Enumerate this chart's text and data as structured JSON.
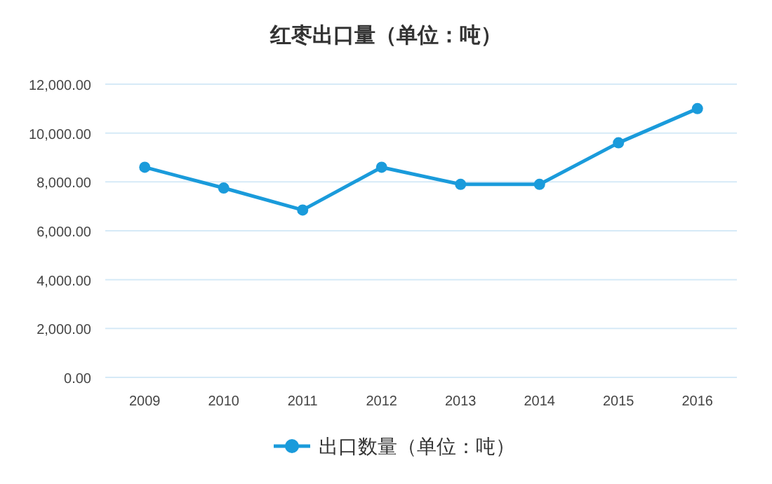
{
  "chart_data": {
    "type": "line",
    "title": "红枣出口量（单位：吨）",
    "categories": [
      "2009",
      "2010",
      "2011",
      "2012",
      "2013",
      "2014",
      "2015",
      "2016"
    ],
    "series": [
      {
        "name": "出口数量（单位：吨）",
        "color": "#1a9bdb",
        "values": [
          8600,
          7750,
          6850,
          8600,
          7900,
          7900,
          9600,
          11000
        ]
      }
    ],
    "ylim": [
      0,
      12000
    ],
    "yticks": [
      {
        "value": 0,
        "label": "0.00"
      },
      {
        "value": 2000,
        "label": "2,000.00"
      },
      {
        "value": 4000,
        "label": "4,000.00"
      },
      {
        "value": 6000,
        "label": "6,000.00"
      },
      {
        "value": 8000,
        "label": "8,000.00"
      },
      {
        "value": 10000,
        "label": "10,000.00"
      },
      {
        "value": 12000,
        "label": "12,000.00"
      }
    ],
    "grid": "y",
    "legend": "bottom",
    "marker": "circle",
    "line_style": "solid"
  }
}
